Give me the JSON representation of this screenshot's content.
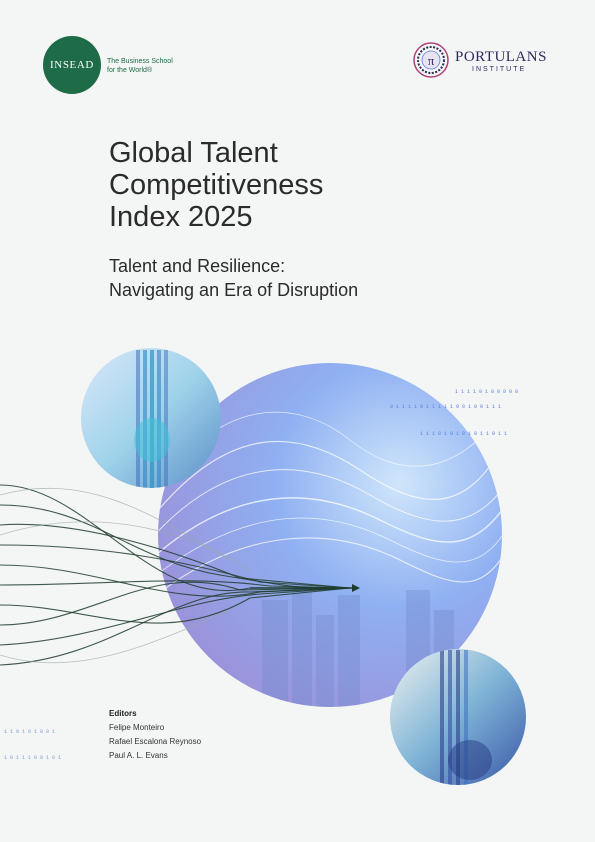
{
  "insead": {
    "name": "INSEAD",
    "tagline_line1": "The Business School",
    "tagline_line2": "for the World®"
  },
  "portulans": {
    "name": "PORTULANS",
    "sub": "INSTITUTE",
    "emblem_glyph": "π"
  },
  "title": {
    "line1": "Global Talent",
    "line2": "Competitiveness",
    "line3": "Index 2025"
  },
  "subtitle": {
    "line1": "Talent and Resilience:",
    "line2": "Navigating an Era of Disruption"
  },
  "binary": {
    "row1": "1 1 1 1 0 1 0 0 0 0 0",
    "row2": "0 1 1 1 1 0 1 1 1 1 1 0 0 1 0 0 1 1 1",
    "row3": "1 1 1 0 1 0 1 0 1 0 1 1 0 1 1",
    "left1": "1 1 0 1 0 1 0 0 1",
    "left2": "1 0 1 1 1 0 0 1 0 1"
  },
  "editors": {
    "heading": "Editors",
    "names": [
      "Felipe Monteiro",
      "Rafael Escalona Reynoso",
      "Paul A. L. Evans"
    ]
  },
  "colors": {
    "insead_green": "#1e6b47",
    "portulans_navy": "#2b2b5a",
    "accent_blue": "#5a7fe0",
    "curve_green": "#1f3d2d"
  }
}
